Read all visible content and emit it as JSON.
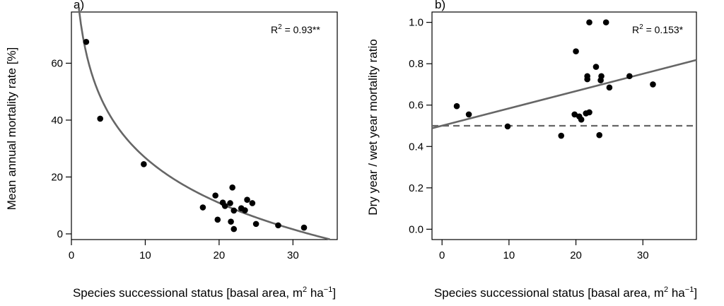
{
  "chart_data": [
    {
      "type": "scatter",
      "panel_label": "a)",
      "xlabel_prefix": "Species successional status [basal area, m",
      "xlabel_sup": "2",
      "xlabel_mid": " ha",
      "xlabel_sup2": "−1",
      "xlabel_suffix": "]",
      "ylabel": "Mean annual mortality rate [%]",
      "annotation_prefix": "R",
      "annotation_sup": "2",
      "annotation_suffix": " = 0.93**",
      "xlim": [
        0,
        36
      ],
      "ylim": [
        -2,
        78
      ],
      "xticks": [
        0,
        10,
        20,
        30
      ],
      "yticks": [
        0,
        20,
        40,
        60
      ],
      "points": [
        {
          "x": 2.0,
          "y": 67.5
        },
        {
          "x": 3.9,
          "y": 40.5
        },
        {
          "x": 9.8,
          "y": 24.5
        },
        {
          "x": 17.8,
          "y": 9.3
        },
        {
          "x": 19.5,
          "y": 13.5
        },
        {
          "x": 19.8,
          "y": 5.0
        },
        {
          "x": 20.5,
          "y": 11.0
        },
        {
          "x": 20.8,
          "y": 9.8
        },
        {
          "x": 21.5,
          "y": 10.8
        },
        {
          "x": 21.6,
          "y": 4.3
        },
        {
          "x": 21.8,
          "y": 16.3
        },
        {
          "x": 22.0,
          "y": 1.7
        },
        {
          "x": 22.0,
          "y": 8.2
        },
        {
          "x": 23.0,
          "y": 9.0
        },
        {
          "x": 23.5,
          "y": 8.3
        },
        {
          "x": 23.8,
          "y": 12.0
        },
        {
          "x": 24.5,
          "y": 10.8
        },
        {
          "x": 25.0,
          "y": 3.5
        },
        {
          "x": 28.0,
          "y": 3.0
        },
        {
          "x": 31.5,
          "y": 2.2
        }
      ],
      "fit": {
        "model": "log",
        "a": 79.5,
        "b": -22.9,
        "x_from": 1.0,
        "x_to": 35.0
      }
    },
    {
      "type": "scatter",
      "panel_label": "b)",
      "xlabel_prefix": "Species successional status [basal area, m",
      "xlabel_sup": "2",
      "xlabel_mid": " ha",
      "xlabel_sup2": "−1",
      "xlabel_suffix": "]",
      "ylabel": "Dry year / wet year mortality ratio",
      "annotation_prefix": "R",
      "annotation_sup": "2",
      "annotation_suffix": " = 0.153*",
      "xlim": [
        -1.5,
        38
      ],
      "ylim": [
        -0.05,
        1.05
      ],
      "xticks": [
        0,
        10,
        20,
        30
      ],
      "yticks": [
        0.0,
        0.2,
        0.4,
        0.6,
        0.8,
        1.0
      ],
      "ytick_labels": [
        "0.0",
        "0.2",
        "0.4",
        "0.6",
        "0.8",
        "1.0"
      ],
      "points": [
        {
          "x": 2.2,
          "y": 0.595
        },
        {
          "x": 4.0,
          "y": 0.555
        },
        {
          "x": 9.8,
          "y": 0.497
        },
        {
          "x": 17.8,
          "y": 0.452
        },
        {
          "x": 19.8,
          "y": 0.555
        },
        {
          "x": 20.0,
          "y": 0.86
        },
        {
          "x": 20.5,
          "y": 0.545
        },
        {
          "x": 20.8,
          "y": 0.53
        },
        {
          "x": 21.5,
          "y": 0.56
        },
        {
          "x": 21.7,
          "y": 0.74
        },
        {
          "x": 21.7,
          "y": 0.725
        },
        {
          "x": 22.0,
          "y": 0.565
        },
        {
          "x": 22.0,
          "y": 1.0
        },
        {
          "x": 23.0,
          "y": 0.785
        },
        {
          "x": 23.5,
          "y": 0.455
        },
        {
          "x": 23.7,
          "y": 0.72
        },
        {
          "x": 23.8,
          "y": 0.74
        },
        {
          "x": 24.5,
          "y": 1.0
        },
        {
          "x": 25.0,
          "y": 0.685
        },
        {
          "x": 28.0,
          "y": 0.74
        },
        {
          "x": 31.5,
          "y": 0.7
        }
      ],
      "fit": {
        "model": "linear",
        "x0": -1.5,
        "y0": 0.488,
        "x1": 38,
        "y1": 0.818
      },
      "reference_line": {
        "y": 0.5
      }
    }
  ]
}
